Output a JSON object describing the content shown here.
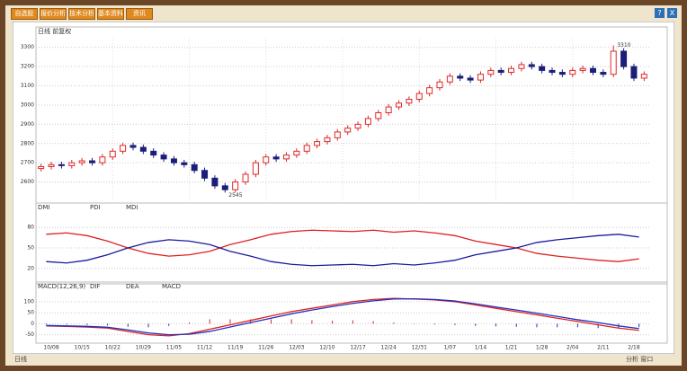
{
  "toolbar": {
    "buttons": [
      "自选股",
      "报价分析",
      "技术分析",
      "基本资料",
      "资讯"
    ],
    "help": "?",
    "close": "X"
  },
  "chart_data": [
    {
      "type": "candlestick",
      "title": "日线 前复权",
      "open": [
        2670,
        2680,
        2690,
        2685,
        2700,
        2710,
        2700,
        2730,
        2760,
        2790,
        2780,
        2760,
        2740,
        2720,
        2700,
        2690,
        2660,
        2620,
        2580,
        2560,
        2600,
        2640,
        2700,
        2730,
        2720,
        2740,
        2760,
        2790,
        2810,
        2830,
        2860,
        2880,
        2900,
        2930,
        2960,
        2990,
        3010,
        3030,
        3060,
        3090,
        3120,
        3150,
        3140,
        3130,
        3160,
        3180,
        3170,
        3190,
        3210,
        3200,
        3180,
        3170,
        3160,
        3180,
        3190,
        3170,
        3160,
        3280,
        3200,
        3140
      ],
      "high": [
        2695,
        2705,
        2705,
        2715,
        2725,
        2725,
        2745,
        2775,
        2805,
        2805,
        2795,
        2775,
        2755,
        2735,
        2715,
        2705,
        2675,
        2635,
        2595,
        2615,
        2655,
        2715,
        2745,
        2745,
        2755,
        2775,
        2805,
        2825,
        2845,
        2875,
        2895,
        2915,
        2945,
        2975,
        3005,
        3025,
        3045,
        3075,
        3105,
        3135,
        3165,
        3165,
        3155,
        3175,
        3195,
        3195,
        3205,
        3225,
        3225,
        3215,
        3195,
        3185,
        3195,
        3205,
        3205,
        3185,
        3310,
        3295,
        3215,
        3175
      ],
      "low": [
        2655,
        2665,
        2670,
        2670,
        2685,
        2685,
        2685,
        2715,
        2745,
        2765,
        2745,
        2725,
        2705,
        2685,
        2675,
        2645,
        2605,
        2565,
        2545,
        2545,
        2585,
        2625,
        2685,
        2705,
        2705,
        2725,
        2745,
        2775,
        2795,
        2815,
        2845,
        2865,
        2885,
        2915,
        2945,
        2975,
        2995,
        3015,
        3045,
        3075,
        3105,
        3125,
        3115,
        3115,
        3145,
        3155,
        3155,
        3175,
        3185,
        3165,
        3155,
        3145,
        3145,
        3165,
        3155,
        3145,
        3145,
        3185,
        3125,
        3125
      ],
      "close": [
        2680,
        2690,
        2685,
        2700,
        2710,
        2700,
        2730,
        2760,
        2790,
        2780,
        2760,
        2740,
        2720,
        2700,
        2690,
        2660,
        2620,
        2580,
        2560,
        2600,
        2640,
        2700,
        2730,
        2720,
        2740,
        2760,
        2790,
        2810,
        2830,
        2860,
        2880,
        2900,
        2930,
        2960,
        2990,
        3010,
        3030,
        3060,
        3090,
        3120,
        3150,
        3140,
        3130,
        3160,
        3180,
        3170,
        3190,
        3210,
        3200,
        3180,
        3170,
        3160,
        3180,
        3190,
        3170,
        3160,
        3280,
        3200,
        3140,
        3160
      ],
      "up_color": "#e02828",
      "down_color": "#1c1f7a",
      "max_label": "3310",
      "min_label": "2545",
      "ylim": [
        2500,
        3350
      ],
      "yticks": [
        2600,
        2700,
        2800,
        2900,
        3000,
        3100,
        3200,
        3300
      ],
      "grid": true
    },
    {
      "type": "line",
      "title": "DMI",
      "series": [
        {
          "name": "PDI",
          "color": "#e02020",
          "values": [
            70,
            72,
            68,
            60,
            50,
            42,
            38,
            40,
            45,
            55,
            62,
            70,
            74,
            76,
            75,
            74,
            76,
            73,
            75,
            72,
            68,
            60,
            55,
            50,
            42,
            38,
            35,
            32,
            30,
            34
          ]
        },
        {
          "name": "MDI",
          "color": "#1a1aa0",
          "values": [
            30,
            28,
            32,
            40,
            50,
            58,
            62,
            60,
            55,
            45,
            38,
            30,
            26,
            24,
            25,
            26,
            24,
            27,
            25,
            28,
            32,
            40,
            45,
            50,
            58,
            62,
            65,
            68,
            70,
            66
          ]
        }
      ],
      "ylim": [
        0,
        100
      ],
      "yticks": [
        20,
        50,
        80
      ]
    },
    {
      "type": "macd",
      "title": "MACD(12,26,9)",
      "series": [
        {
          "name": "DIF",
          "color": "#e02020",
          "values": [
            -10,
            -12,
            -15,
            -20,
            -35,
            -50,
            -55,
            -45,
            -25,
            -5,
            15,
            35,
            55,
            70,
            85,
            100,
            110,
            115,
            112,
            108,
            100,
            85,
            70,
            55,
            40,
            25,
            10,
            -5,
            -20,
            -30
          ]
        },
        {
          "name": "DEA",
          "color": "#2030c0",
          "values": [
            -8,
            -10,
            -12,
            -16,
            -28,
            -42,
            -50,
            -48,
            -35,
            -15,
            5,
            25,
            45,
            62,
            78,
            92,
            104,
            112,
            113,
            110,
            103,
            90,
            76,
            62,
            48,
            33,
            18,
            5,
            -10,
            -22
          ]
        }
      ],
      "histogram": {
        "name": "MACD",
        "values": [
          -4,
          -4,
          -6,
          -8,
          -14,
          -16,
          -10,
          6,
          20,
          20,
          20,
          20,
          20,
          16,
          14,
          16,
          12,
          6,
          -2,
          -4,
          -6,
          -10,
          -12,
          -14,
          -16,
          -16,
          -16,
          -20,
          -20,
          -16
        ]
      },
      "ylim": [
        -80,
        140
      ],
      "yticks": [
        -50,
        0,
        50,
        100
      ]
    }
  ],
  "x_axis": {
    "labels": [
      "10/08",
      "10/15",
      "10/22",
      "10/29",
      "11/05",
      "11/12",
      "11/19",
      "11/26",
      "12/03",
      "12/10",
      "12/17",
      "12/24",
      "12/31",
      "1/07",
      "1/14",
      "1/21",
      "1/28",
      "2/04",
      "2/11",
      "2/18"
    ]
  },
  "status_bar": {
    "left": "日线",
    "right": "分析 窗口"
  }
}
